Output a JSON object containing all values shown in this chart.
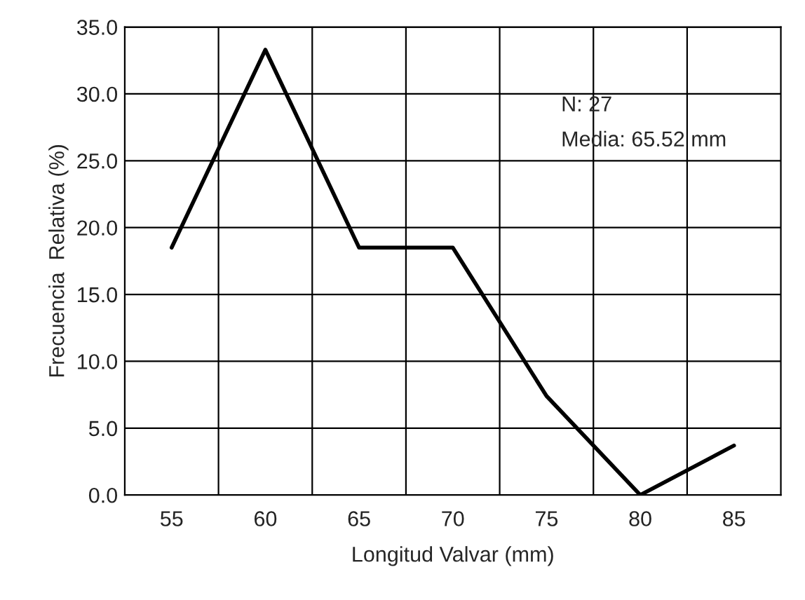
{
  "chart_data": {
    "type": "line",
    "xlabel": "Longitud Valvar (mm)",
    "ylabel": "Frecuencia  Relativa (%)",
    "categories": [
      "55",
      "60",
      "65",
      "70",
      "75",
      "80",
      "85"
    ],
    "values": [
      18.5,
      33.3,
      18.5,
      18.5,
      7.4,
      0,
      3.7
    ],
    "color": "#000000",
    "grid": true,
    "marker": "none",
    "line_style": "solid",
    "ylim": [
      0,
      35
    ],
    "yticks": [
      {
        "value": 0,
        "label": "0.0"
      },
      {
        "value": 5,
        "label": "5.0"
      },
      {
        "value": 10,
        "label": "10.0"
      },
      {
        "value": 15,
        "label": "15.0"
      },
      {
        "value": 20,
        "label": "20.0"
      },
      {
        "value": 25,
        "label": "25.0"
      },
      {
        "value": 30,
        "label": "30.0"
      },
      {
        "value": 35,
        "label": "35.0"
      }
    ],
    "annotations": [
      "N: 27",
      "Media: 65.52 mm"
    ]
  }
}
